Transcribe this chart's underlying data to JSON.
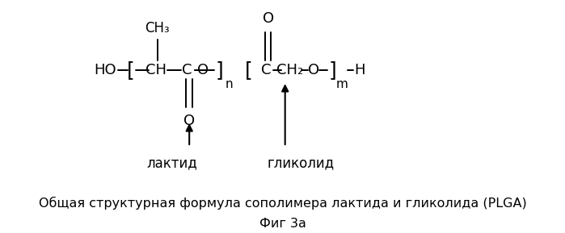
{
  "bg_color": "#ffffff",
  "title_line1": "Общая структурная формула сополимера лактида и гликолида (PLGA)",
  "title_line2": "Фиг 3а",
  "label_lactide": "лактид",
  "label_glycolide": "гликолид",
  "title_fontsize": 11.5,
  "label_fontsize": 12,
  "struct_fontsize": 13
}
